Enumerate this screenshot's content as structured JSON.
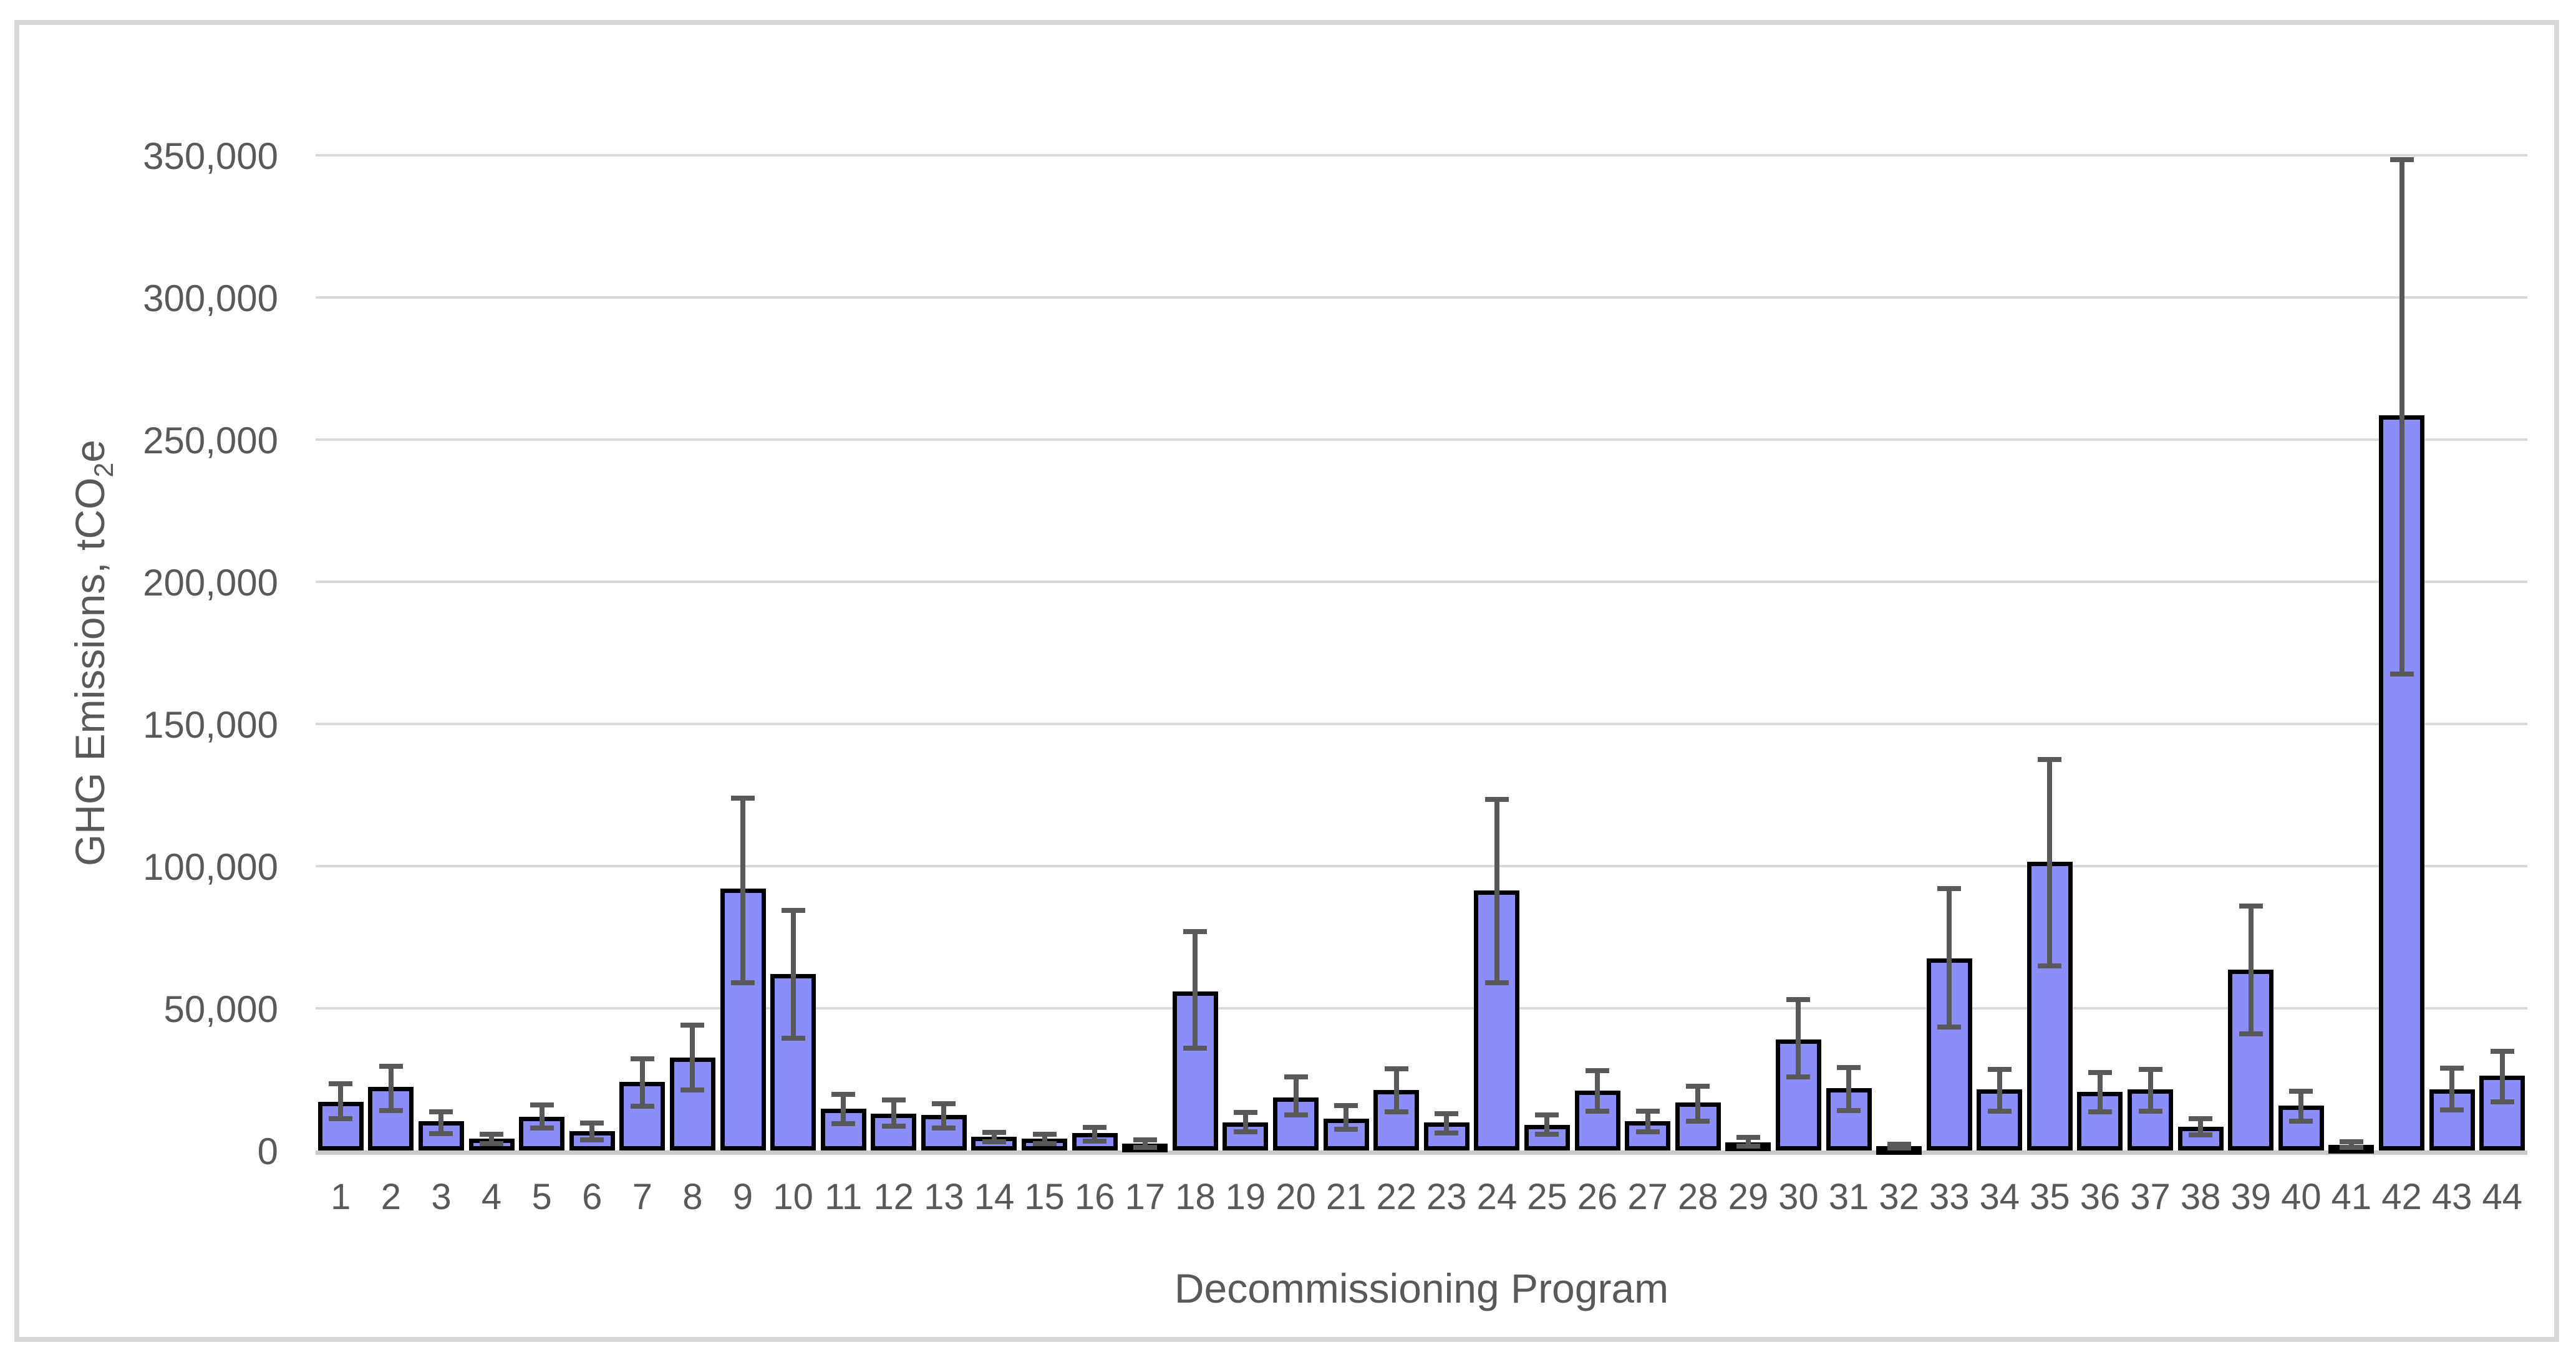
{
  "chart": {
    "y_axis_title": {
      "prefix": "GHG Emissions, tCO",
      "sub": "2",
      "suffix": "e"
    },
    "x_axis_title": "Decommissioning Program"
  },
  "chart_data": {
    "type": "bar",
    "title": "",
    "xlabel": "Decommissioning Program",
    "ylabel": "GHG Emissions, tCO2e",
    "ylim": [
      0,
      350000
    ],
    "ytick_interval": 50000,
    "ytick_labels": [
      "0",
      "50,000",
      "100,000",
      "150,000",
      "200,000",
      "250,000",
      "300,000",
      "350,000"
    ],
    "grid": true,
    "legend": false,
    "error_bars": true,
    "categories": [
      "1",
      "2",
      "3",
      "4",
      "5",
      "6",
      "7",
      "8",
      "9",
      "10",
      "11",
      "12",
      "13",
      "14",
      "15",
      "16",
      "17",
      "18",
      "19",
      "20",
      "21",
      "22",
      "23",
      "24",
      "25",
      "26",
      "27",
      "28",
      "29",
      "30",
      "31",
      "32",
      "33",
      "34",
      "35",
      "36",
      "37",
      "38",
      "39",
      "40",
      "41",
      "42",
      "43",
      "44"
    ],
    "values": [
      17000,
      22300,
      10200,
      4200,
      11900,
      6900,
      24200,
      32600,
      92000,
      62000,
      14700,
      12900,
      12400,
      4900,
      4200,
      6100,
      2500,
      56000,
      9900,
      18600,
      11200,
      21300,
      9900,
      91500,
      9100,
      21000,
      10300,
      16800,
      2800,
      39100,
      21900,
      1500,
      67500,
      21400,
      101500,
      20600,
      21400,
      8400,
      63500,
      15700,
      2000,
      258500,
      21600,
      26300
    ],
    "error_low": [
      11200,
      14100,
      6000,
      2500,
      7800,
      3800,
      15600,
      21300,
      59000,
      39500,
      9500,
      8500,
      8000,
      3000,
      2400,
      3200,
      1200,
      36000,
      6500,
      12500,
      7500,
      13600,
      6100,
      59000,
      5600,
      13800,
      6500,
      10400,
      1600,
      25900,
      14100,
      800,
      43500,
      13900,
      65000,
      13500,
      13900,
      5400,
      41000,
      10300,
      1000,
      167500,
      14200,
      17000
    ],
    "error_high": [
      23500,
      29700,
      13600,
      5800,
      15900,
      9600,
      32200,
      44000,
      124000,
      84500,
      19800,
      17700,
      16500,
      6400,
      5800,
      8100,
      3800,
      77000,
      13300,
      25900,
      15700,
      28800,
      13000,
      123500,
      12500,
      28000,
      13900,
      22500,
      4500,
      53000,
      29100,
      2200,
      92000,
      28400,
      137500,
      27400,
      28600,
      11200,
      86000,
      20900,
      3100,
      348500,
      28900,
      34800
    ],
    "colors": {
      "bar_fill": "#8B8DF9",
      "bar_border": "#000000",
      "error_bar": "#595959",
      "gridline": "#D9D9D9",
      "axis_line": "#C9C9C9",
      "text": "#595959",
      "frame_border": "#D9D9D9",
      "background": "#FFFFFF"
    }
  }
}
